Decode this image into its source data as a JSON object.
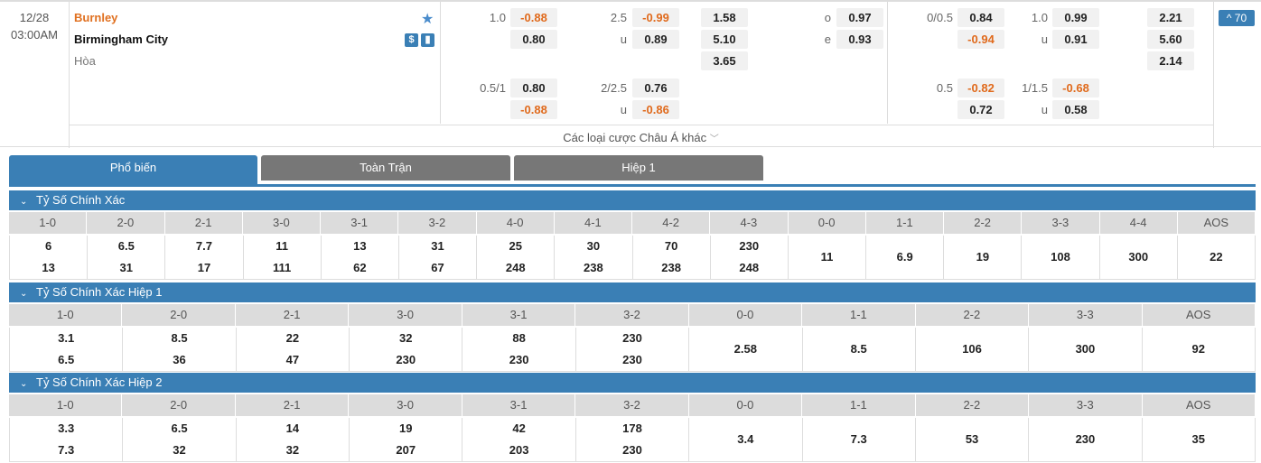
{
  "match": {
    "date": "12/28",
    "time": "03:00AM",
    "home": "Burnley",
    "away": "Birmingham City",
    "draw": "Hòa",
    "icons": [
      "star-icon",
      "dollar-icon",
      "chart-icon"
    ]
  },
  "odds_full": {
    "hdp_main": {
      "line": "1.0",
      "home": "-0.88",
      "away": "0.80"
    },
    "ou_main": {
      "line": "2.5",
      "under_label": "u",
      "over": "-0.99",
      "under": "0.89"
    },
    "x12": [
      "1.58",
      "5.10",
      "3.65"
    ],
    "oe": {
      "o_label": "o",
      "e_label": "e",
      "o": "0.97",
      "e": "0.93"
    },
    "hdp_alt": {
      "line": "0.5/1",
      "home": "0.80",
      "away": "-0.88"
    },
    "ou_alt": {
      "line": "2/2.5",
      "under_label": "u",
      "over": "0.76",
      "under": "-0.86"
    }
  },
  "odds_half": {
    "hdp_main": {
      "line": "0/0.5",
      "home": "0.84",
      "away": "-0.94"
    },
    "ou_main": {
      "line": "1.0",
      "under_label": "u",
      "over": "0.99",
      "under": "0.91"
    },
    "x12": [
      "2.21",
      "5.60",
      "2.14"
    ],
    "hdp_alt": {
      "line": "0.5",
      "home": "-0.82",
      "away": "0.72"
    },
    "ou_alt": {
      "line": "1/1.5",
      "under_label": "u",
      "over": "-0.68",
      "under": "0.58"
    }
  },
  "more_bets": "Các loại cược Châu Á khác",
  "collapse_label": "^ 70",
  "tabs": [
    {
      "label": "Phổ biến"
    },
    {
      "label": "Toàn Trận"
    },
    {
      "label": "Hiệp 1"
    }
  ],
  "colors": {
    "accent": "#3a7fb5",
    "negative": "#e06a1c",
    "home": "#e07020"
  },
  "sections": [
    {
      "title": "Tỷ Số Chính Xác",
      "headers": [
        "1-0",
        "2-0",
        "2-1",
        "3-0",
        "3-1",
        "3-2",
        "4-0",
        "4-1",
        "4-2",
        "4-3",
        "0-0",
        "1-1",
        "2-2",
        "3-3",
        "4-4",
        "AOS"
      ],
      "cells": [
        [
          "6",
          "13"
        ],
        [
          "6.5",
          "31"
        ],
        [
          "7.7",
          "17"
        ],
        [
          "11",
          "111"
        ],
        [
          "13",
          "62"
        ],
        [
          "31",
          "67"
        ],
        [
          "25",
          "248"
        ],
        [
          "30",
          "238"
        ],
        [
          "70",
          "238"
        ],
        [
          "230",
          "248"
        ],
        [
          "11"
        ],
        [
          "6.9"
        ],
        [
          "19"
        ],
        [
          "108"
        ],
        [
          "300"
        ],
        [
          "22"
        ]
      ]
    },
    {
      "title": "Tỷ Số Chính Xác Hiệp 1",
      "headers": [
        "1-0",
        "2-0",
        "2-1",
        "3-0",
        "3-1",
        "3-2",
        "0-0",
        "1-1",
        "2-2",
        "3-3",
        "AOS"
      ],
      "cells": [
        [
          "3.1",
          "6.5"
        ],
        [
          "8.5",
          "36"
        ],
        [
          "22",
          "47"
        ],
        [
          "32",
          "230"
        ],
        [
          "88",
          "230"
        ],
        [
          "230",
          "230"
        ],
        [
          "2.58"
        ],
        [
          "8.5"
        ],
        [
          "106"
        ],
        [
          "300"
        ],
        [
          "92"
        ]
      ]
    },
    {
      "title": "Tỷ Số Chính Xác Hiệp 2",
      "headers": [
        "1-0",
        "2-0",
        "2-1",
        "3-0",
        "3-1",
        "3-2",
        "0-0",
        "1-1",
        "2-2",
        "3-3",
        "AOS"
      ],
      "cells": [
        [
          "3.3",
          "7.3"
        ],
        [
          "6.5",
          "32"
        ],
        [
          "14",
          "32"
        ],
        [
          "19",
          "207"
        ],
        [
          "42",
          "203"
        ],
        [
          "178",
          "230"
        ],
        [
          "3.4"
        ],
        [
          "7.3"
        ],
        [
          "53"
        ],
        [
          "230"
        ],
        [
          "35"
        ]
      ]
    }
  ]
}
